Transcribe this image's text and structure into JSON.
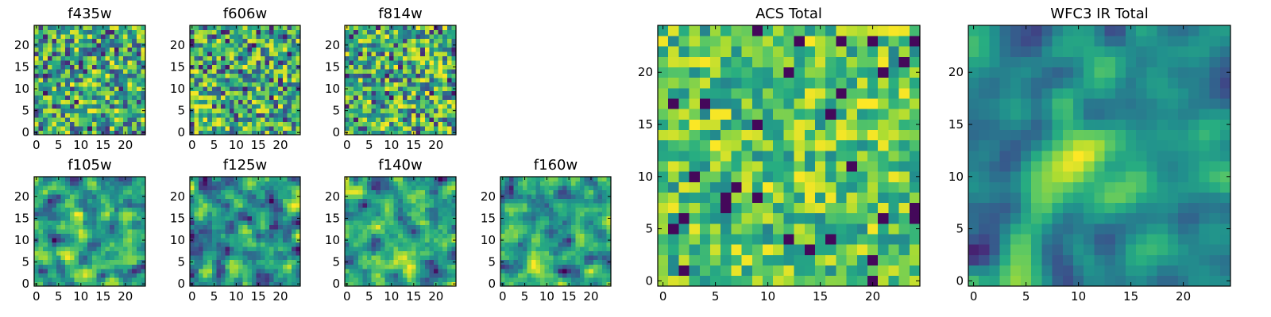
{
  "figure": {
    "type": "heatmap-grid",
    "background": "#ffffff",
    "colormap": "viridis"
  },
  "chart_data": [
    {
      "type": "heatmap",
      "title": "f435w",
      "grid": [
        25,
        25
      ],
      "xticks": [
        "0",
        "5",
        "10",
        "15",
        "20"
      ],
      "yticks": [
        "0",
        "5",
        "10",
        "15",
        "20"
      ],
      "xlim": [
        -0.5,
        24.5
      ],
      "ylim": [
        -0.5,
        24.5
      ],
      "texture": "fine-noise",
      "seed": 101
    },
    {
      "type": "heatmap",
      "title": "f606w",
      "grid": [
        25,
        25
      ],
      "xticks": [
        "0",
        "5",
        "10",
        "15",
        "20"
      ],
      "yticks": [
        "0",
        "5",
        "10",
        "15",
        "20"
      ],
      "xlim": [
        -0.5,
        24.5
      ],
      "ylim": [
        -0.5,
        24.5
      ],
      "texture": "fine-noise",
      "seed": 202
    },
    {
      "type": "heatmap",
      "title": "f814w",
      "grid": [
        25,
        25
      ],
      "xticks": [
        "0",
        "5",
        "10",
        "15",
        "20"
      ],
      "yticks": [
        "0",
        "5",
        "10",
        "15",
        "20"
      ],
      "xlim": [
        -0.5,
        24.5
      ],
      "ylim": [
        -0.5,
        24.5
      ],
      "texture": "fine-noise",
      "seed": 303
    },
    {
      "type": "heatmap",
      "title": "f105w",
      "grid": [
        25,
        25
      ],
      "xticks": [
        "0",
        "5",
        "10",
        "15",
        "20"
      ],
      "yticks": [
        "0",
        "5",
        "10",
        "15",
        "20"
      ],
      "xlim": [
        -0.5,
        24.5
      ],
      "ylim": [
        -0.5,
        24.5
      ],
      "texture": "smoothed-noise",
      "seed": 404
    },
    {
      "type": "heatmap",
      "title": "f125w",
      "grid": [
        25,
        25
      ],
      "xticks": [
        "0",
        "5",
        "10",
        "15",
        "20"
      ],
      "yticks": [
        "0",
        "5",
        "10",
        "15",
        "20"
      ],
      "xlim": [
        -0.5,
        24.5
      ],
      "ylim": [
        -0.5,
        24.5
      ],
      "texture": "smoothed-noise",
      "seed": 505
    },
    {
      "type": "heatmap",
      "title": "f140w",
      "grid": [
        25,
        25
      ],
      "xticks": [
        "0",
        "5",
        "10",
        "15",
        "20"
      ],
      "yticks": [
        "0",
        "5",
        "10",
        "15",
        "20"
      ],
      "xlim": [
        -0.5,
        24.5
      ],
      "ylim": [
        -0.5,
        24.5
      ],
      "texture": "smoothed-noise",
      "seed": 606
    },
    {
      "type": "heatmap",
      "title": "f160w",
      "grid": [
        25,
        25
      ],
      "xticks": [
        "0",
        "5",
        "10",
        "15",
        "20"
      ],
      "yticks": [
        "0",
        "5",
        "10",
        "15",
        "20"
      ],
      "xlim": [
        -0.5,
        24.5
      ],
      "ylim": [
        -0.5,
        24.5
      ],
      "texture": "smoothed-noise",
      "seed": 707
    },
    {
      "type": "heatmap",
      "title": "ACS Total",
      "grid": [
        25,
        25
      ],
      "xticks": [
        "0",
        "5",
        "10",
        "15",
        "20"
      ],
      "yticks": [
        "0",
        "5",
        "10",
        "15",
        "20"
      ],
      "xlim": [
        -0.5,
        24.5
      ],
      "ylim": [
        -0.5,
        24.5
      ],
      "texture": "bright-noise",
      "seed": 808
    },
    {
      "type": "heatmap",
      "title": "WFC3 IR Total",
      "grid": [
        25,
        25
      ],
      "xticks": [
        "0",
        "5",
        "10",
        "15",
        "20"
      ],
      "yticks": [
        "0",
        "5",
        "10",
        "15",
        "20"
      ],
      "xlim": [
        -0.5,
        24.5
      ],
      "ylim": [
        -0.5,
        24.5
      ],
      "texture": "smooth-with-peak",
      "seed": 909
    }
  ]
}
